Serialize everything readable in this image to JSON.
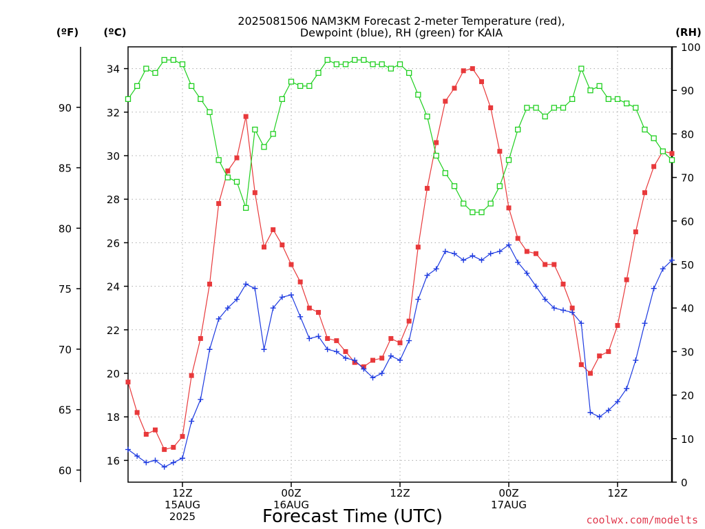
{
  "chart_data": {
    "type": "line",
    "title_lines": [
      "2025081506 NAM3KM Forecast 2-meter Temperature (red),",
      "Dewpoint (blue), RH (green) for KAIA"
    ],
    "xlabel": "Forecast Time (UTC)",
    "credit": "coolwx.com/modelts",
    "units": {
      "fahrenheit": "(ºF)",
      "celsius": "(ºC)",
      "rh": "(RH)"
    },
    "axes": {
      "x_range_hours": [
        6,
        66
      ],
      "celsius_range": [
        15,
        35
      ],
      "rh_range": [
        0,
        100
      ],
      "celsius_ticks": [
        "16",
        "18",
        "20",
        "22",
        "24",
        "26",
        "28",
        "30",
        "32",
        "34"
      ],
      "fahrenheit_ticks": [
        "60",
        "65",
        "70",
        "75",
        "80",
        "85",
        "90"
      ],
      "rh_ticks": [
        "0",
        "10",
        "20",
        "30",
        "40",
        "50",
        "60",
        "70",
        "80",
        "90",
        "100"
      ],
      "grid": true
    },
    "x_ticks": [
      {
        "hour": 12,
        "lines": [
          "12Z",
          "15AUG",
          "2025"
        ]
      },
      {
        "hour": 24,
        "lines": [
          "00Z",
          "16AUG"
        ]
      },
      {
        "hour": 36,
        "lines": [
          "12Z"
        ]
      },
      {
        "hour": 48,
        "lines": [
          "00Z",
          "17AUG"
        ]
      },
      {
        "hour": 60,
        "lines": [
          "12Z"
        ]
      }
    ],
    "hours": [
      6,
      7,
      8,
      9,
      10,
      11,
      12,
      13,
      14,
      15,
      16,
      17,
      18,
      19,
      20,
      21,
      22,
      23,
      24,
      25,
      26,
      27,
      28,
      29,
      30,
      31,
      32,
      33,
      34,
      35,
      36,
      37,
      38,
      39,
      40,
      41,
      42,
      43,
      44,
      45,
      46,
      47,
      48,
      49,
      50,
      51,
      52,
      53,
      54,
      55,
      56,
      57,
      58,
      59,
      60,
      61,
      62,
      63,
      64,
      65,
      66
    ],
    "series": [
      {
        "name": "Temperature",
        "color": "#e8393b",
        "axis": "celsius",
        "marker": "filled-square",
        "values": [
          19.6,
          18.2,
          17.2,
          17.4,
          16.5,
          16.6,
          17.1,
          19.9,
          21.6,
          24.1,
          27.8,
          29.3,
          29.9,
          31.8,
          28.3,
          25.8,
          26.6,
          25.9,
          25.0,
          24.2,
          23.0,
          22.8,
          21.6,
          21.5,
          21.0,
          20.5,
          20.3,
          20.6,
          20.7,
          21.6,
          21.4,
          22.4,
          25.8,
          28.5,
          30.6,
          32.5,
          33.1,
          33.9,
          34.0,
          33.4,
          32.2,
          30.2,
          27.6,
          26.2,
          25.6,
          25.5,
          25.0,
          25.0,
          24.1,
          23.0,
          20.4,
          20.0,
          20.8,
          21.0,
          22.2,
          24.3,
          26.5,
          28.3,
          29.5,
          30.2,
          30.1
        ]
      },
      {
        "name": "Dewpoint",
        "color": "#1d3ae0",
        "axis": "celsius",
        "marker": "plus",
        "values": [
          16.5,
          16.2,
          15.9,
          16.0,
          15.7,
          15.9,
          16.1,
          17.8,
          18.8,
          21.1,
          22.5,
          23.0,
          23.4,
          24.1,
          23.9,
          21.1,
          23.0,
          23.5,
          23.6,
          22.6,
          21.6,
          21.7,
          21.1,
          21.0,
          20.7,
          20.6,
          20.2,
          19.8,
          20.0,
          20.8,
          20.6,
          21.5,
          23.4,
          24.5,
          24.8,
          25.6,
          25.5,
          25.2,
          25.4,
          25.2,
          25.5,
          25.6,
          25.9,
          25.1,
          24.6,
          24.0,
          23.4,
          23.0,
          22.9,
          22.8,
          22.3,
          18.2,
          18.0,
          18.3,
          18.7,
          19.3,
          20.6,
          22.3,
          23.9,
          24.8,
          25.2
        ]
      },
      {
        "name": "RH",
        "color": "#1fcf1f",
        "axis": "rh",
        "marker": "open-square",
        "values": [
          88,
          91,
          95,
          94,
          97,
          97,
          96,
          91,
          88,
          85,
          74,
          70,
          69,
          63,
          81,
          77,
          80,
          88,
          92,
          91,
          91,
          94,
          97,
          96,
          96,
          97,
          97,
          96,
          96,
          95,
          96,
          94,
          89,
          84,
          75,
          71,
          68,
          64,
          62,
          62,
          64,
          68,
          74,
          81,
          86,
          86,
          84,
          86,
          86,
          88,
          95,
          90,
          91,
          88,
          88,
          87,
          86,
          81,
          79,
          76,
          74
        ]
      }
    ]
  }
}
